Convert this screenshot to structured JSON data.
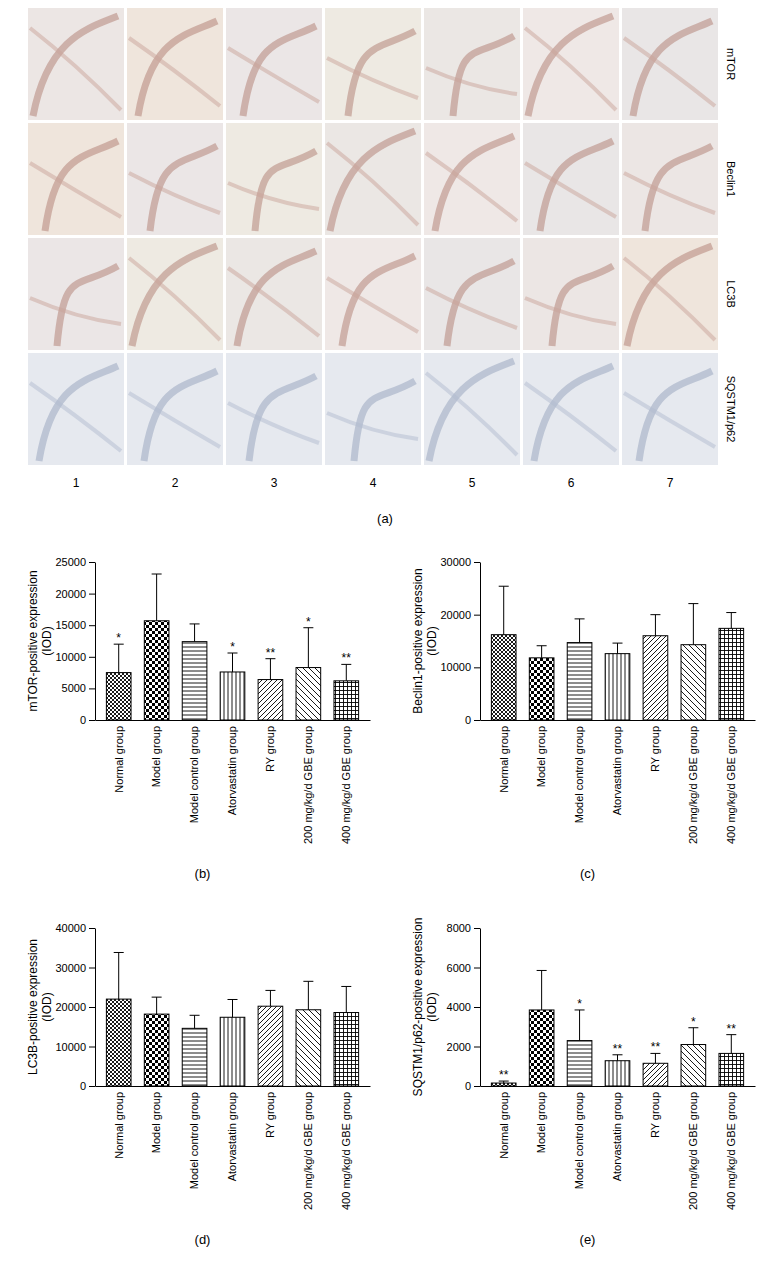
{
  "image_panel": {
    "caption": "(a)",
    "rows": [
      "mTOR",
      "Beclin1",
      "LC3B",
      "SQSTM1/p62"
    ],
    "columns": [
      "1",
      "2",
      "3",
      "4",
      "5",
      "6",
      "7"
    ]
  },
  "chart_data": [
    {
      "type": "bar",
      "caption": "(b)",
      "ylabel": [
        "mTOR-positive expression",
        "(IOD)"
      ],
      "categories": [
        "Normal group",
        "Model group",
        "Model control group",
        "Atorvastatin group",
        "RY group",
        "200 mg/kg/d GBE group",
        "400 mg/kg/d GBE group"
      ],
      "values": [
        7500,
        15700,
        12400,
        7600,
        6400,
        8300,
        6200
      ],
      "errors": [
        4500,
        7400,
        2800,
        3000,
        3300,
        6300,
        2600
      ],
      "annotations": [
        "*",
        null,
        null,
        "*",
        "**",
        "*",
        "**"
      ],
      "color": "#ffffff",
      "ylim": [
        0,
        25000
      ],
      "yticks": [
        0,
        5000,
        10000,
        15000,
        20000,
        25000
      ]
    },
    {
      "type": "bar",
      "caption": "(c)",
      "ylabel": [
        "Beclin1-positive expression",
        "(IOD)"
      ],
      "categories": [
        "Normal group",
        "Model group",
        "Model control group",
        "Atorvastatin group",
        "RY group",
        "200 mg/kg/d GBE group",
        "400 mg/kg/d GBE group"
      ],
      "values": [
        16200,
        11800,
        14700,
        12600,
        16000,
        14300,
        17400
      ],
      "errors": [
        9200,
        2300,
        4500,
        2000,
        4000,
        7800,
        3000
      ],
      "color": "#ffffff",
      "ylim": [
        0,
        30000
      ],
      "yticks": [
        0,
        10000,
        20000,
        30000
      ]
    },
    {
      "type": "bar",
      "caption": "(d)",
      "ylabel": [
        "LC3B-positive expression",
        "(IOD)"
      ],
      "categories": [
        "Normal group",
        "Model group",
        "Model control group",
        "Atorvastatin group",
        "RY group",
        "200 mg/kg/d GBE group",
        "400 mg/kg/d GBE group"
      ],
      "values": [
        22000,
        18200,
        14600,
        17400,
        20200,
        19300,
        18600
      ],
      "errors": [
        11800,
        4300,
        3300,
        4500,
        4000,
        7200,
        6600
      ],
      "color": "#ffffff",
      "ylim": [
        0,
        40000
      ],
      "yticks": [
        0,
        10000,
        20000,
        30000,
        40000
      ]
    },
    {
      "type": "bar",
      "caption": "(e)",
      "ylabel": [
        "SQSTM1/p62-positive expression",
        "(IOD)"
      ],
      "categories": [
        "Normal group",
        "Model group",
        "Model control group",
        "Atorvastatin group",
        "RY group",
        "200 mg/kg/d GBE group",
        "400 mg/kg/d GBE group"
      ],
      "values": [
        150,
        3850,
        2300,
        1280,
        1150,
        2100,
        1650
      ],
      "errors": [
        100,
        2000,
        1550,
        300,
        500,
        850,
        950
      ],
      "annotations": [
        "**",
        null,
        "*",
        "**",
        "**",
        "*",
        "**"
      ],
      "color": "#ffffff",
      "ylim": [
        0,
        8000
      ],
      "yticks": [
        0,
        2000,
        4000,
        6000,
        8000
      ]
    }
  ]
}
